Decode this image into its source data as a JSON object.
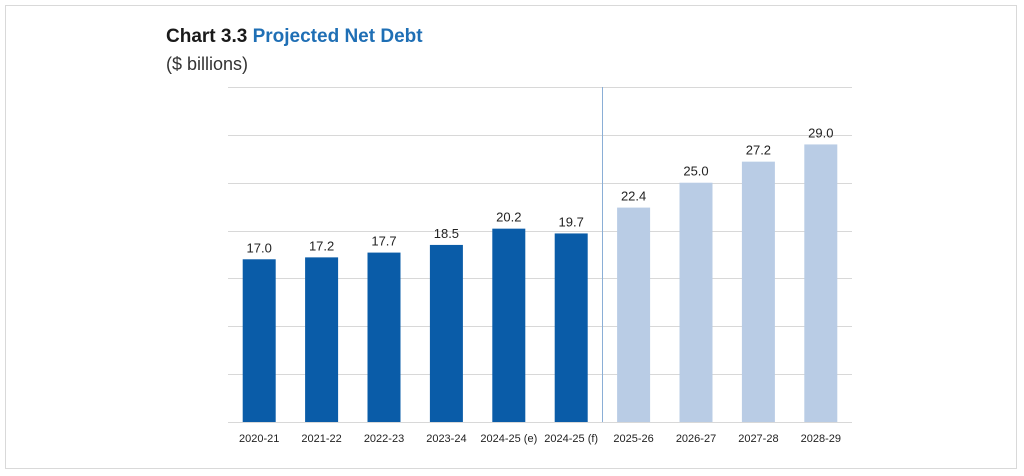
{
  "title": {
    "prefix": "Chart 3.3",
    "main": "Projected Net Debt"
  },
  "subtitle": "($ billions)",
  "colors": {
    "actual": "#0a5ca8",
    "projected": "#b9cce5",
    "accent": "#1f6fb5"
  },
  "chart_data": {
    "type": "bar",
    "title": "Chart 3.3 Projected Net Debt",
    "ylabel": "($ billions)",
    "xlabel": "",
    "ylim": [
      0,
      35
    ],
    "grid": true,
    "categories": [
      "2020-21",
      "2021-22",
      "2022-23",
      "2023-24",
      "2024-25 (e)",
      "2024-25 (f)",
      "2025-26",
      "2026-27",
      "2027-28",
      "2028-29"
    ],
    "values": [
      17.0,
      17.2,
      17.7,
      18.5,
      20.2,
      19.7,
      22.4,
      25.0,
      27.2,
      29.0
    ],
    "labels": [
      "17.0",
      "17.2",
      "17.7",
      "18.5",
      "20.2",
      "19.7",
      "22.4",
      "25.0",
      "27.2",
      "29.0"
    ],
    "series_kind": [
      "actual",
      "actual",
      "actual",
      "actual",
      "actual",
      "actual",
      "projected",
      "projected",
      "projected",
      "projected"
    ]
  }
}
